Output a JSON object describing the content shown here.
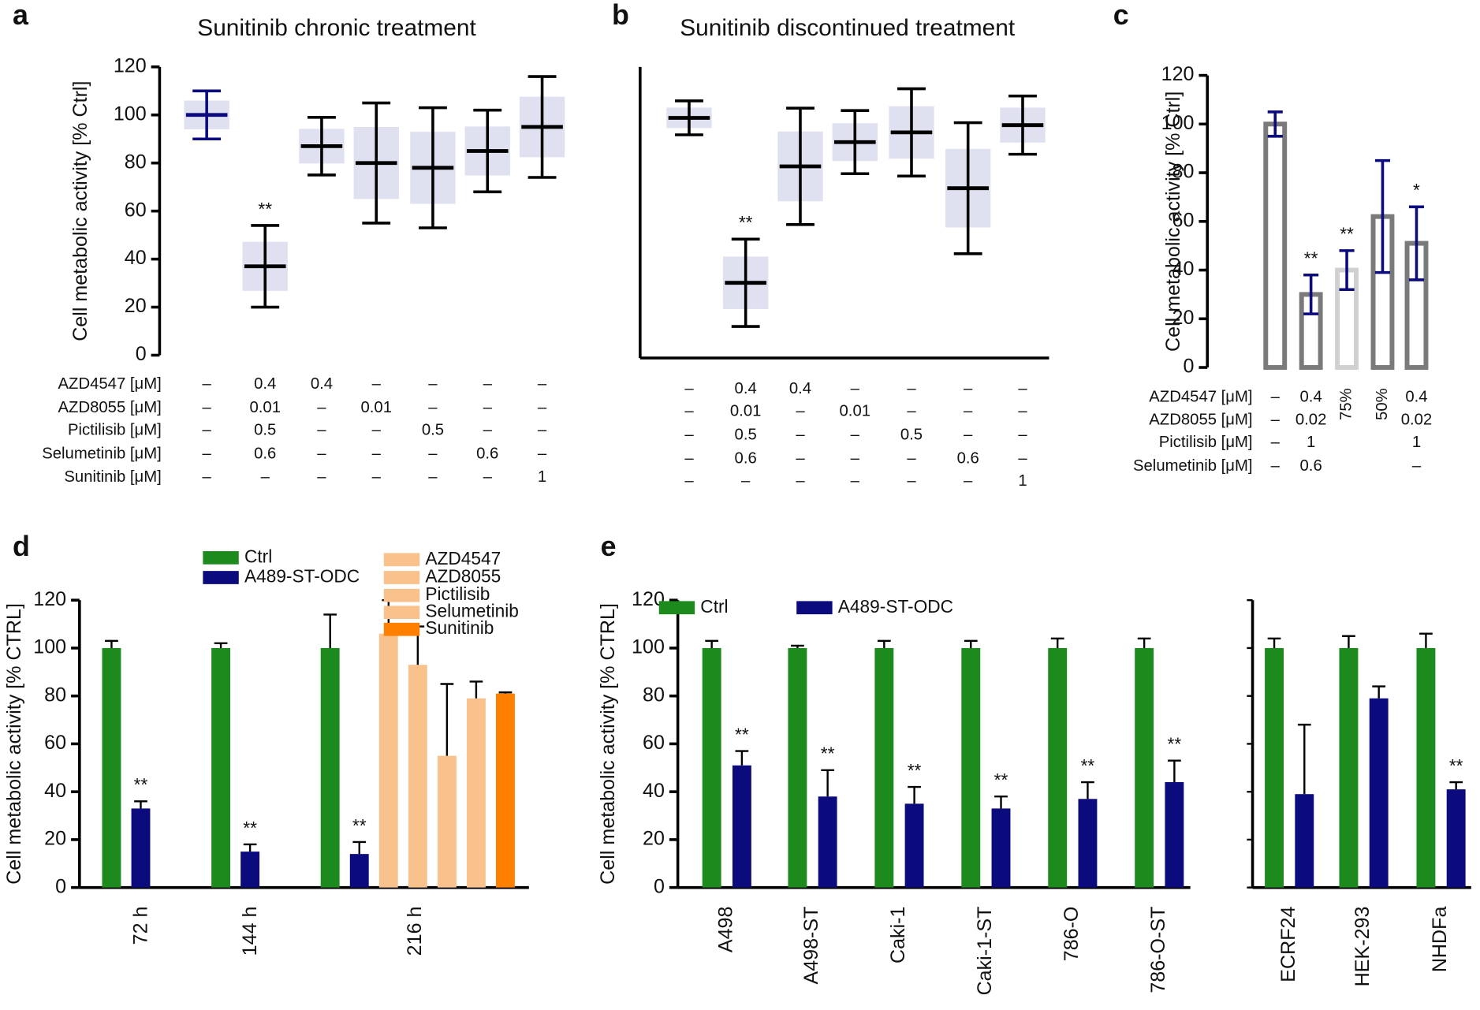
{
  "chart_data": [
    {
      "panel": "a",
      "type": "dotplot",
      "title": "Sunitinib chronic treatment",
      "ylabel": "Cell metabolic activity [% Ctrl]",
      "ylim": [
        0,
        120
      ],
      "yticks": [
        0,
        20,
        40,
        60,
        80,
        100,
        120
      ],
      "values": [
        100,
        37,
        87,
        80,
        78,
        85,
        95
      ],
      "errors": [
        10,
        17,
        12,
        25,
        25,
        17,
        21
      ],
      "significance": [
        null,
        "**",
        null,
        null,
        null,
        null,
        null
      ],
      "rows": [
        {
          "label": "AZD4547 [μM]",
          "cells": [
            "–",
            "0.4",
            "0.4",
            "–",
            "–",
            "–",
            "–"
          ]
        },
        {
          "label": "AZD8055 [μM]",
          "cells": [
            "–",
            "0.01",
            "–",
            "0.01",
            "–",
            "–",
            "–"
          ]
        },
        {
          "label": "Pictilisib [μM]",
          "cells": [
            "–",
            "0.5",
            "–",
            "–",
            "0.5",
            "–",
            "–"
          ]
        },
        {
          "label": "Selumetinib [μM]",
          "cells": [
            "–",
            "0.6",
            "–",
            "–",
            "–",
            "0.6",
            "–"
          ]
        },
        {
          "label": "Sunitinib [μM]",
          "cells": [
            "–",
            "–",
            "–",
            "–",
            "–",
            "–",
            "1"
          ]
        }
      ]
    },
    {
      "panel": "b",
      "type": "dotplot",
      "title": "Sunitinib discontinued treatment",
      "ylim": [
        0,
        120
      ],
      "values": [
        99,
        31,
        79,
        89,
        93,
        70,
        96
      ],
      "errors": [
        7,
        18,
        24,
        13,
        18,
        27,
        12
      ],
      "significance": [
        null,
        "**",
        null,
        null,
        null,
        null,
        null
      ],
      "rows": [
        {
          "cells": [
            "–",
            "0.4",
            "0.4",
            "–",
            "–",
            "–",
            "–"
          ]
        },
        {
          "cells": [
            "–",
            "0.01",
            "–",
            "0.01",
            "–",
            "–",
            "–"
          ]
        },
        {
          "cells": [
            "–",
            "0.5",
            "–",
            "–",
            "0.5",
            "–",
            "–"
          ]
        },
        {
          "cells": [
            "–",
            "0.6",
            "–",
            "–",
            "–",
            "0.6",
            "–"
          ]
        },
        {
          "cells": [
            "–",
            "–",
            "–",
            "–",
            "–",
            "–",
            "1"
          ]
        }
      ]
    },
    {
      "panel": "c",
      "type": "bar",
      "ylabel": "Cell metabolic activity [% Ctrl]",
      "ylim": [
        0,
        120
      ],
      "yticks": [
        0,
        20,
        40,
        60,
        80,
        100,
        120
      ],
      "values": [
        100,
        30,
        40,
        62,
        51
      ],
      "errors": [
        5,
        8,
        8,
        23,
        15
      ],
      "colors": [
        "#7a7a7a",
        "#7a7a7a",
        "#d0d0d0",
        "#7a7a7a",
        "#7a7a7a"
      ],
      "significance": [
        null,
        "**",
        "**",
        null,
        "*"
      ],
      "dose_labels": [
        null,
        null,
        "75%",
        "50%",
        null
      ],
      "rows": [
        {
          "label": "AZD4547 [μM]",
          "cells": [
            "–",
            "0.4",
            null,
            null,
            "0.4"
          ]
        },
        {
          "label": "AZD8055 [μM]",
          "cells": [
            "–",
            "0.02",
            null,
            null,
            "0.02"
          ]
        },
        {
          "label": "Pictilisib [μM]",
          "cells": [
            "–",
            "1",
            null,
            null,
            "1"
          ]
        },
        {
          "label": "Selumetinib [μM]",
          "cells": [
            "–",
            "0.6",
            null,
            null,
            "–"
          ]
        }
      ]
    },
    {
      "panel": "d",
      "type": "grouped_bar",
      "ylabel": "Cell metabolic activity [% CTRL]",
      "ylim": [
        0,
        120
      ],
      "yticks": [
        0,
        20,
        40,
        60,
        80,
        100,
        120
      ],
      "categories": [
        "72 h",
        "144 h",
        "216 h"
      ],
      "series": [
        {
          "name": "Ctrl",
          "color": "#1d8a1d",
          "values": [
            100,
            100,
            100
          ],
          "errors": [
            3,
            2,
            14
          ]
        },
        {
          "name": "A489-ST-ODC",
          "color": "#0b0b7e",
          "values": [
            33,
            15,
            14
          ],
          "errors": [
            3,
            3,
            5
          ],
          "significance": [
            "**",
            "**",
            "**"
          ]
        },
        {
          "name": "AZD4547",
          "color": "#f9c28c",
          "values": [
            null,
            null,
            106
          ],
          "errors": [
            null,
            null,
            14
          ]
        },
        {
          "name": "AZD8055",
          "color": "#f9c28c",
          "values": [
            null,
            null,
            93
          ],
          "errors": [
            null,
            null,
            16
          ]
        },
        {
          "name": "Pictilisib",
          "color": "#f9c28c",
          "values": [
            null,
            null,
            55
          ],
          "errors": [
            null,
            null,
            30
          ]
        },
        {
          "name": "Selumetinib",
          "color": "#f9c28c",
          "values": [
            null,
            null,
            79
          ],
          "errors": [
            null,
            null,
            7
          ]
        },
        {
          "name": "Sunitinib",
          "color": "#ff8000",
          "values": [
            null,
            null,
            81
          ],
          "errors": [
            null,
            null,
            0.5
          ]
        }
      ]
    },
    {
      "panel": "e",
      "type": "grouped_bar",
      "ylabel": "Cell metabolic activity [% CTRL]",
      "ylim": [
        0,
        120
      ],
      "yticks": [
        0,
        20,
        40,
        60,
        80,
        100,
        120
      ],
      "categories": [
        "A498",
        "A498-ST",
        "Caki-1",
        "Caki-1-ST",
        "786-O",
        "786-O-ST",
        "ECRF24",
        "HEK-293",
        "NHDFa"
      ],
      "series": [
        {
          "name": "Ctrl",
          "color": "#1d8a1d",
          "values": [
            100,
            100,
            100,
            100,
            100,
            100,
            100,
            100,
            100
          ],
          "errors": [
            3,
            1,
            3,
            3,
            4,
            4,
            4,
            5,
            6
          ]
        },
        {
          "name": "A489-ST-ODC",
          "color": "#0b0b7e",
          "values": [
            51,
            38,
            35,
            33,
            37,
            44,
            39,
            79,
            41
          ],
          "errors": [
            6,
            11,
            7,
            5,
            7,
            9,
            29,
            5,
            3
          ],
          "significance": [
            "**",
            "**",
            "**",
            "**",
            "**",
            "**",
            null,
            null,
            "**"
          ]
        }
      ]
    }
  ]
}
